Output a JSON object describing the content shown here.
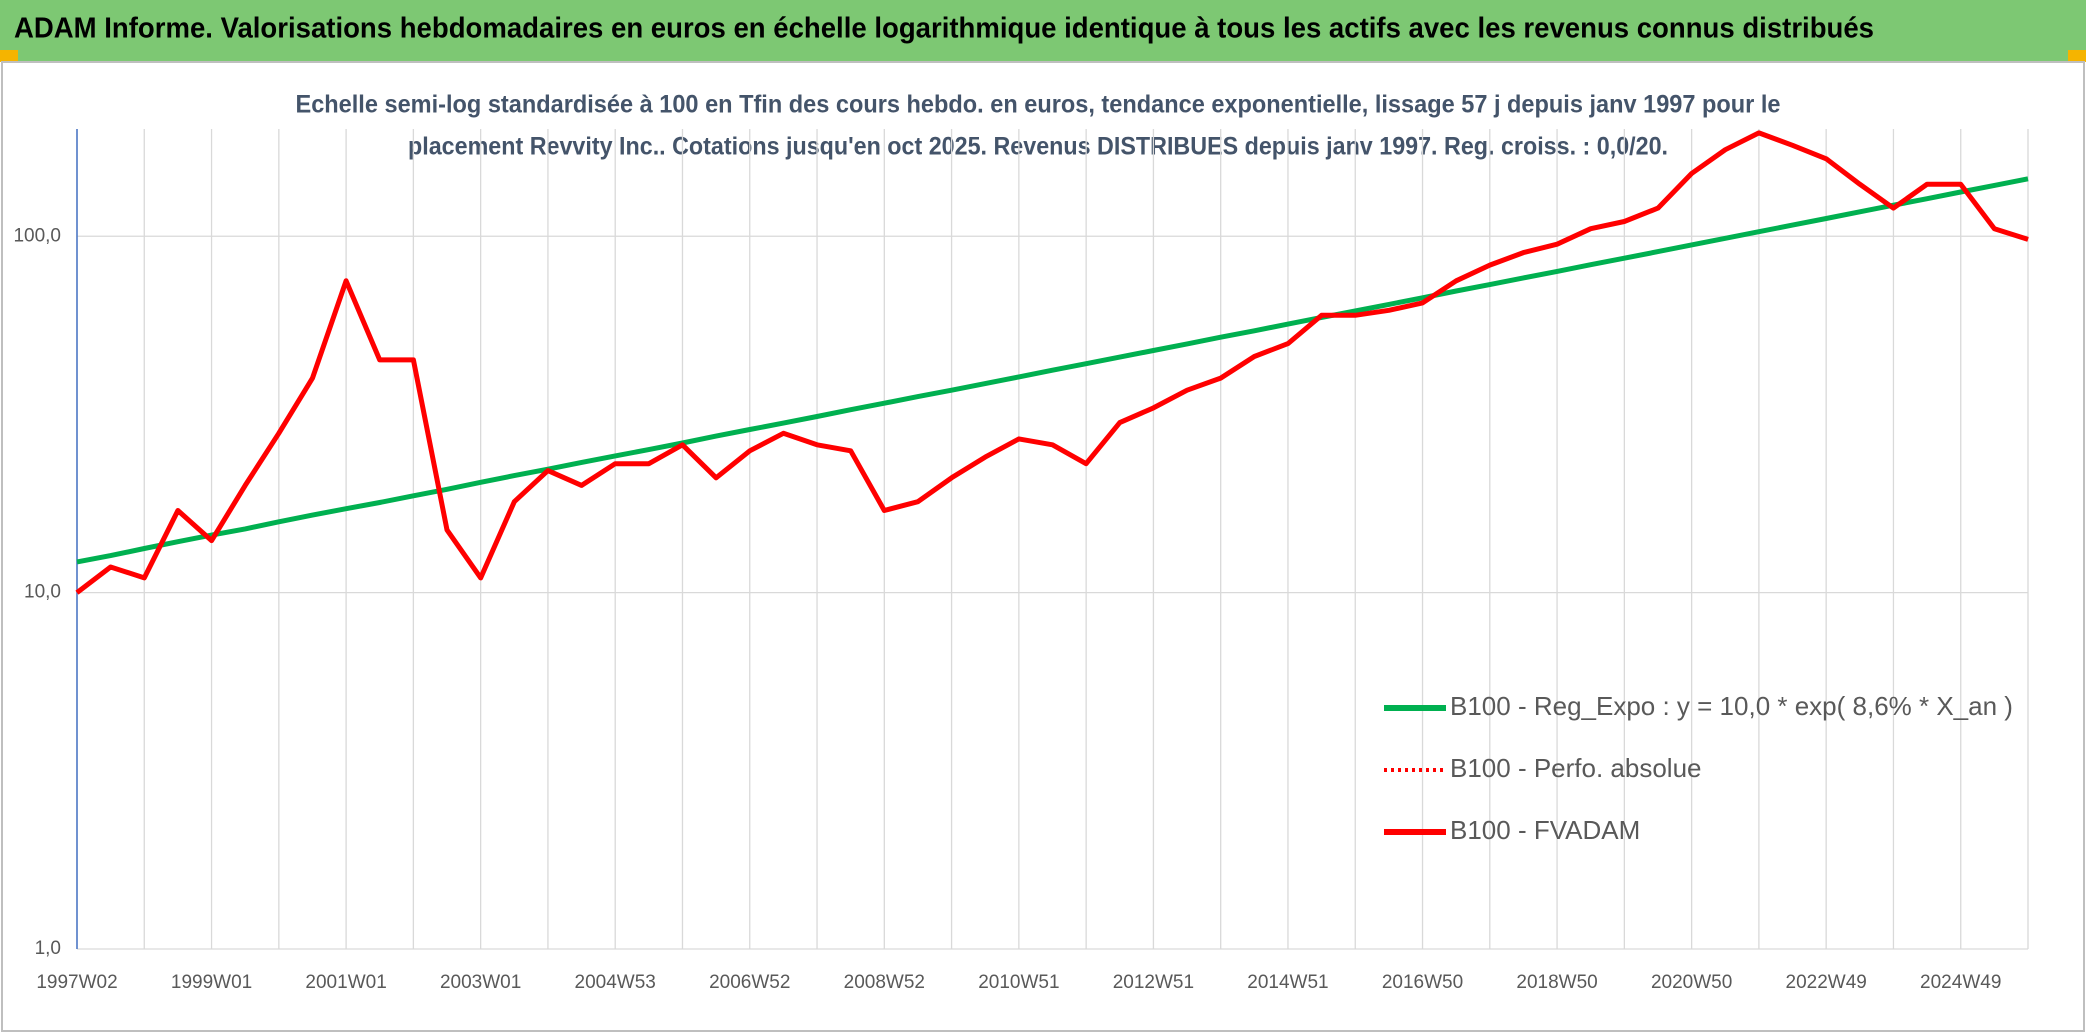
{
  "chart_data": {
    "type": "line",
    "title": "ADAM Informe. Valorisations hebdomadaires en euros en échelle logarithmique identique à tous les actifs avec les revenus connus distribués",
    "subtitle": [
      "Echelle semi-log standardisée à 100 en Tfin des cours hebdo. en euros, tendance exponentielle, lissage 57 j depuis janv 1997 pour le",
      "placement Revvity Inc.. Cotations jusqu'en oct 2025. Revenus DISTRIBUES depuis janv 1997. Reg. croiss. : 0,0/20."
    ],
    "categories": [
      "1997W02",
      null,
      null,
      null,
      "1999W01",
      null,
      null,
      null,
      "2001W01",
      null,
      null,
      null,
      "2003W01",
      null,
      null,
      null,
      "2004W53",
      null,
      null,
      null,
      "2006W52",
      null,
      null,
      null,
      "2008W52",
      null,
      null,
      null,
      "2010W51",
      null,
      null,
      null,
      "2012W51",
      null,
      null,
      null,
      "2014W51",
      null,
      null,
      null,
      "2016W50",
      null,
      null,
      null,
      "2018W50",
      null,
      null,
      null,
      "2020W50",
      null,
      null,
      null,
      "2022W49",
      null,
      null,
      null,
      "2024W49",
      null,
      null
    ],
    "series": [
      {
        "name": "B100 - Reg_Expo : y = 10,0 * exp( 8,6% *  X_an )",
        "color": "#00b050",
        "style": "solid",
        "values": [
          12.2,
          12.7,
          13.3,
          13.9,
          14.5,
          15.1,
          15.8,
          16.5,
          17.2,
          17.9,
          18.7,
          19.5,
          20.4,
          21.3,
          22.2,
          23.2,
          24.2,
          25.2,
          26.3,
          27.5,
          28.7,
          29.9,
          31.2,
          32.6,
          34.0,
          35.5,
          37.0,
          38.6,
          40.3,
          42.1,
          43.9,
          45.8,
          47.8,
          49.9,
          52.1,
          54.3,
          56.7,
          59.2,
          61.7,
          64.4,
          67.2,
          70.2,
          73.2,
          76.4,
          79.7,
          83.2,
          86.8,
          90.6,
          94.6,
          98.7,
          103.0,
          107.5,
          112.2,
          117.1,
          122.2,
          127.5,
          133.1,
          138.9,
          145.0
        ]
      },
      {
        "name": "B100 - Perfo. absolue",
        "color": "#ff0000",
        "style": "dotted",
        "values": [
          10,
          11.8,
          11,
          17,
          14,
          20,
          28,
          40,
          75,
          45,
          45,
          15,
          11,
          18,
          22,
          20,
          23,
          23,
          26,
          21,
          25,
          28,
          26,
          25,
          17,
          18,
          21,
          24,
          27,
          26,
          23,
          30,
          33,
          37,
          40,
          46,
          50,
          60,
          60,
          62,
          65,
          75,
          83,
          90,
          95,
          105,
          110,
          120,
          150,
          175,
          195,
          180,
          165,
          140,
          120,
          140,
          140,
          105,
          98
        ]
      },
      {
        "name": "B100 - FVADAM",
        "color": "#ff0000",
        "style": "solid",
        "values": [
          10,
          11.8,
          11,
          17,
          14,
          20,
          28,
          40,
          75,
          45,
          45,
          15,
          11,
          18,
          22,
          20,
          23,
          23,
          26,
          21,
          25,
          28,
          26,
          25,
          17,
          18,
          21,
          24,
          27,
          26,
          23,
          30,
          33,
          37,
          40,
          46,
          50,
          60,
          60,
          62,
          65,
          75,
          83,
          90,
          95,
          105,
          110,
          120,
          150,
          175,
          195,
          180,
          165,
          140,
          120,
          140,
          140,
          105,
          98
        ]
      }
    ],
    "ylim": [
      1,
      200
    ],
    "log_scale": true,
    "yticks": [
      {
        "value": 1,
        "label": "1,0"
      },
      {
        "value": 10,
        "label": "10,0"
      },
      {
        "value": 100,
        "label": "100,0"
      }
    ],
    "grid": true,
    "legend": "lower-right"
  }
}
